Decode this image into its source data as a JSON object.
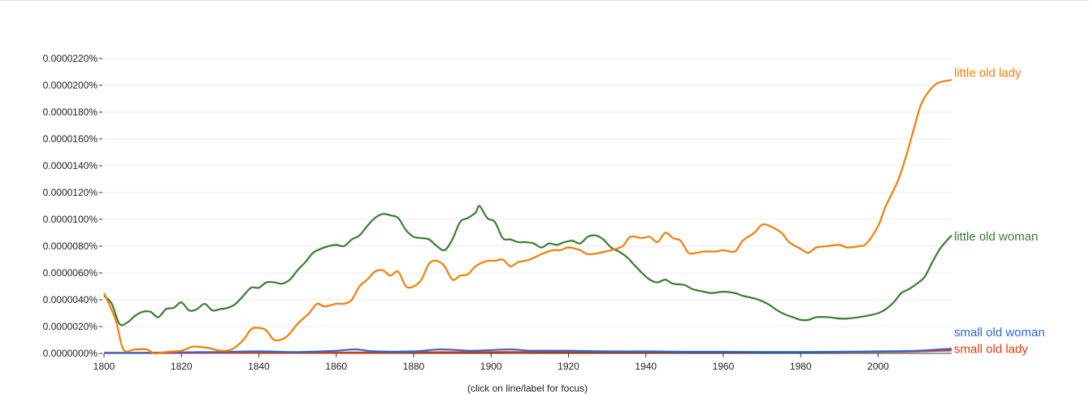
{
  "footer": {
    "note": "(click on line/label for focus)"
  },
  "chart_data": {
    "type": "line",
    "title": "",
    "xlabel": "",
    "ylabel": "",
    "xlim": [
      1800,
      2019
    ],
    "ylim": [
      0,
      2.2e-05
    ],
    "x_ticks": [
      1800,
      1820,
      1840,
      1860,
      1880,
      1900,
      1920,
      1940,
      1960,
      1980,
      2000
    ],
    "y_ticks": [
      "0.0000000%",
      "0.0000020%",
      "0.0000040%",
      "0.0000060%",
      "0.0000080%",
      "0.0000100%",
      "0.0000120%",
      "0.0000140%",
      "0.0000160%",
      "0.0000180%",
      "0.0000200%",
      "0.0000220%"
    ],
    "y_tick_values": [
      0,
      2e-06,
      4e-06,
      6e-06,
      8e-06,
      1e-05,
      1.2e-05,
      1.4e-05,
      1.6e-05,
      1.8e-05,
      2e-05,
      2.2e-05
    ],
    "grid": true,
    "legend": "right",
    "series": [
      {
        "name": "little old lady",
        "color": "#f07f09",
        "points": [
          [
            1800,
            4.5e-06
          ],
          [
            1803,
            2.5e-06
          ],
          [
            1805,
            3e-07
          ],
          [
            1808,
            3e-07
          ],
          [
            1811,
            3e-07
          ],
          [
            1813,
            0.0
          ],
          [
            1816,
            1e-07
          ],
          [
            1820,
            2e-07
          ],
          [
            1823,
            5e-07
          ],
          [
            1827,
            4e-07
          ],
          [
            1830,
            2e-07
          ],
          [
            1833,
            3e-07
          ],
          [
            1836,
            1e-06
          ],
          [
            1838,
            1.8e-06
          ],
          [
            1840,
            1.9e-06
          ],
          [
            1842,
            1.7e-06
          ],
          [
            1844,
            1e-06
          ],
          [
            1847,
            1.2e-06
          ],
          [
            1850,
            2.2e-06
          ],
          [
            1853,
            3e-06
          ],
          [
            1855,
            3.7e-06
          ],
          [
            1857,
            3.5e-06
          ],
          [
            1860,
            3.7e-06
          ],
          [
            1862,
            3.7e-06
          ],
          [
            1864,
            4e-06
          ],
          [
            1866,
            5e-06
          ],
          [
            1868,
            5.5e-06
          ],
          [
            1870,
            6.1e-06
          ],
          [
            1872,
            6.2e-06
          ],
          [
            1874,
            5.8e-06
          ],
          [
            1876,
            6.1e-06
          ],
          [
            1878,
            5e-06
          ],
          [
            1880,
            5e-06
          ],
          [
            1882,
            5.5e-06
          ],
          [
            1884,
            6.7e-06
          ],
          [
            1886,
            6.9e-06
          ],
          [
            1888,
            6.5e-06
          ],
          [
            1890,
            5.5e-06
          ],
          [
            1892,
            5.8e-06
          ],
          [
            1894,
            5.9e-06
          ],
          [
            1896,
            6.5e-06
          ],
          [
            1899,
            6.9e-06
          ],
          [
            1901,
            6.9e-06
          ],
          [
            1903,
            7e-06
          ],
          [
            1905,
            6.5e-06
          ],
          [
            1907,
            6.8e-06
          ],
          [
            1910,
            7e-06
          ],
          [
            1913,
            7.4e-06
          ],
          [
            1916,
            7.7e-06
          ],
          [
            1918,
            7.7e-06
          ],
          [
            1920,
            7.9e-06
          ],
          [
            1923,
            7.7e-06
          ],
          [
            1925,
            7.4e-06
          ],
          [
            1928,
            7.5e-06
          ],
          [
            1931,
            7.7e-06
          ],
          [
            1934,
            8e-06
          ],
          [
            1936,
            8.7e-06
          ],
          [
            1939,
            8.6e-06
          ],
          [
            1941,
            8.7e-06
          ],
          [
            1943,
            8.3e-06
          ],
          [
            1945,
            9e-06
          ],
          [
            1947,
            8.6e-06
          ],
          [
            1949,
            8.4e-06
          ],
          [
            1951,
            7.5e-06
          ],
          [
            1953,
            7.5e-06
          ],
          [
            1955,
            7.6e-06
          ],
          [
            1958,
            7.6e-06
          ],
          [
            1960,
            7.7e-06
          ],
          [
            1963,
            7.6e-06
          ],
          [
            1965,
            8.4e-06
          ],
          [
            1968,
            9e-06
          ],
          [
            1970,
            9.6e-06
          ],
          [
            1972,
            9.5e-06
          ],
          [
            1975,
            9e-06
          ],
          [
            1977,
            8.3e-06
          ],
          [
            1980,
            7.8e-06
          ],
          [
            1982,
            7.5e-06
          ],
          [
            1984,
            7.9e-06
          ],
          [
            1987,
            8e-06
          ],
          [
            1990,
            8.1e-06
          ],
          [
            1992,
            7.9e-06
          ],
          [
            1995,
            8e-06
          ],
          [
            1997,
            8.2e-06
          ],
          [
            2000,
            9.5e-06
          ],
          [
            2002,
            1.1e-05
          ],
          [
            2005,
            1.28e-05
          ],
          [
            2007,
            1.45e-05
          ],
          [
            2009,
            1.65e-05
          ],
          [
            2011,
            1.85e-05
          ],
          [
            2013,
            1.95e-05
          ],
          [
            2015,
            2.01e-05
          ],
          [
            2017,
            2.03e-05
          ],
          [
            2019,
            2.04e-05
          ]
        ]
      },
      {
        "name": "little old woman",
        "color": "#3a7d32",
        "points": [
          [
            1800,
            4.3e-06
          ],
          [
            1802,
            3.7e-06
          ],
          [
            1804,
            2.2e-06
          ],
          [
            1806,
            2.3e-06
          ],
          [
            1808,
            2.8e-06
          ],
          [
            1810,
            3.1e-06
          ],
          [
            1812,
            3.1e-06
          ],
          [
            1814,
            2.7e-06
          ],
          [
            1816,
            3.3e-06
          ],
          [
            1818,
            3.4e-06
          ],
          [
            1820,
            3.8e-06
          ],
          [
            1822,
            3.2e-06
          ],
          [
            1824,
            3.3e-06
          ],
          [
            1826,
            3.7e-06
          ],
          [
            1828,
            3.2e-06
          ],
          [
            1830,
            3.3e-06
          ],
          [
            1832,
            3.4e-06
          ],
          [
            1834,
            3.7e-06
          ],
          [
            1836,
            4.3e-06
          ],
          [
            1838,
            4.9e-06
          ],
          [
            1840,
            4.9e-06
          ],
          [
            1842,
            5.3e-06
          ],
          [
            1844,
            5.3e-06
          ],
          [
            1846,
            5.2e-06
          ],
          [
            1848,
            5.5e-06
          ],
          [
            1850,
            6.2e-06
          ],
          [
            1852,
            6.8e-06
          ],
          [
            1854,
            7.5e-06
          ],
          [
            1856,
            7.8e-06
          ],
          [
            1858,
            8e-06
          ],
          [
            1860,
            8.1e-06
          ],
          [
            1862,
            8e-06
          ],
          [
            1864,
            8.5e-06
          ],
          [
            1866,
            8.8e-06
          ],
          [
            1868,
            9.5e-06
          ],
          [
            1870,
            1.01e-05
          ],
          [
            1872,
            1.04e-05
          ],
          [
            1874,
            1.03e-05
          ],
          [
            1876,
            1.01e-05
          ],
          [
            1878,
            9.2e-06
          ],
          [
            1880,
            8.7e-06
          ],
          [
            1882,
            8.6e-06
          ],
          [
            1884,
            8.5e-06
          ],
          [
            1886,
            8e-06
          ],
          [
            1888,
            7.7e-06
          ],
          [
            1890,
            8.5e-06
          ],
          [
            1892,
            9.8e-06
          ],
          [
            1894,
            1.01e-05
          ],
          [
            1896,
            1.05e-05
          ],
          [
            1897,
            1.1e-05
          ],
          [
            1899,
            1.01e-05
          ],
          [
            1901,
            9.8e-06
          ],
          [
            1903,
            8.6e-06
          ],
          [
            1905,
            8.5e-06
          ],
          [
            1907,
            8.3e-06
          ],
          [
            1909,
            8.3e-06
          ],
          [
            1911,
            8.2e-06
          ],
          [
            1913,
            7.9e-06
          ],
          [
            1915,
            8.2e-06
          ],
          [
            1917,
            8.1e-06
          ],
          [
            1919,
            8.3e-06
          ],
          [
            1921,
            8.4e-06
          ],
          [
            1923,
            8.2e-06
          ],
          [
            1925,
            8.7e-06
          ],
          [
            1927,
            8.8e-06
          ],
          [
            1929,
            8.5e-06
          ],
          [
            1931,
            7.9e-06
          ],
          [
            1933,
            7.6e-06
          ],
          [
            1935,
            7.2e-06
          ],
          [
            1937,
            6.6e-06
          ],
          [
            1939,
            6e-06
          ],
          [
            1941,
            5.5e-06
          ],
          [
            1943,
            5.3e-06
          ],
          [
            1945,
            5.5e-06
          ],
          [
            1947,
            5.2e-06
          ],
          [
            1950,
            5.1e-06
          ],
          [
            1952,
            4.8e-06
          ],
          [
            1955,
            4.6e-06
          ],
          [
            1957,
            4.5e-06
          ],
          [
            1960,
            4.6e-06
          ],
          [
            1963,
            4.5e-06
          ],
          [
            1965,
            4.3e-06
          ],
          [
            1968,
            4.1e-06
          ],
          [
            1970,
            3.9e-06
          ],
          [
            1972,
            3.6e-06
          ],
          [
            1974,
            3.2e-06
          ],
          [
            1976,
            2.9e-06
          ],
          [
            1978,
            2.7e-06
          ],
          [
            1980,
            2.5e-06
          ],
          [
            1982,
            2.5e-06
          ],
          [
            1984,
            2.7e-06
          ],
          [
            1987,
            2.7e-06
          ],
          [
            1990,
            2.6e-06
          ],
          [
            1992,
            2.6e-06
          ],
          [
            1995,
            2.7e-06
          ],
          [
            1997,
            2.8e-06
          ],
          [
            2000,
            3e-06
          ],
          [
            2002,
            3.3e-06
          ],
          [
            2004,
            3.8e-06
          ],
          [
            2006,
            4.5e-06
          ],
          [
            2008,
            4.8e-06
          ],
          [
            2010,
            5.2e-06
          ],
          [
            2012,
            5.7e-06
          ],
          [
            2014,
            6.8e-06
          ],
          [
            2016,
            7.8e-06
          ],
          [
            2018,
            8.5e-06
          ],
          [
            2019,
            8.8e-06
          ]
        ]
      },
      {
        "name": "small old woman",
        "color": "#3366cc",
        "points": [
          [
            1800,
            5e-08
          ],
          [
            1810,
            5e-08
          ],
          [
            1820,
            8e-08
          ],
          [
            1830,
            1e-07
          ],
          [
            1840,
            1.5e-07
          ],
          [
            1850,
            1e-07
          ],
          [
            1860,
            2e-07
          ],
          [
            1865,
            3e-07
          ],
          [
            1870,
            1.5e-07
          ],
          [
            1880,
            1.5e-07
          ],
          [
            1887,
            3e-07
          ],
          [
            1895,
            2e-07
          ],
          [
            1905,
            3e-07
          ],
          [
            1910,
            2e-07
          ],
          [
            1920,
            2e-07
          ],
          [
            1930,
            1.5e-07
          ],
          [
            1940,
            1.5e-07
          ],
          [
            1950,
            1.2e-07
          ],
          [
            1960,
            1.2e-07
          ],
          [
            1970,
            1e-07
          ],
          [
            1980,
            1e-07
          ],
          [
            1990,
            1.2e-07
          ],
          [
            2000,
            1.5e-07
          ],
          [
            2010,
            2e-07
          ],
          [
            2019,
            3.5e-07
          ]
        ]
      },
      {
        "name": "small old lady",
        "color": "#dc3912",
        "points": [
          [
            1800,
            2e-08
          ],
          [
            1820,
            3e-08
          ],
          [
            1840,
            5e-08
          ],
          [
            1860,
            6e-08
          ],
          [
            1880,
            8e-08
          ],
          [
            1900,
            1e-07
          ],
          [
            1920,
            1e-07
          ],
          [
            1940,
            1e-07
          ],
          [
            1960,
            1e-07
          ],
          [
            1980,
            1e-07
          ],
          [
            2000,
            1.2e-07
          ],
          [
            2010,
            1.5e-07
          ],
          [
            2019,
            2.2e-07
          ]
        ]
      }
    ]
  }
}
